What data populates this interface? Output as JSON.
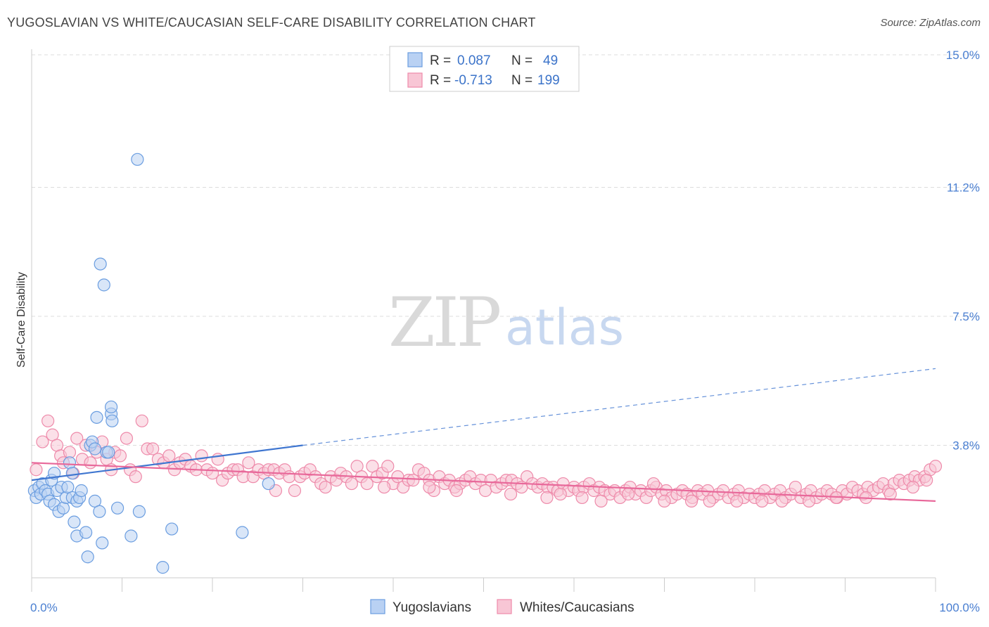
{
  "title": "YUGOSLAVIAN VS WHITE/CAUCASIAN SELF-CARE DISABILITY CORRELATION CHART",
  "source": "Source: ZipAtlas.com",
  "watermark": {
    "zip": "ZIP",
    "atlas": "atlas"
  },
  "legend": {
    "rows": [
      {
        "r_label": "R =",
        "r_value": "0.087",
        "n_label": "N =",
        "n_value": "49",
        "color": "#9ec0ee"
      },
      {
        "r_label": "R =",
        "r_value": "-0.713",
        "n_label": "N =",
        "n_value": "199",
        "color": "#f6b7cb"
      }
    ]
  },
  "bottom_legend": [
    "Yugoslavians",
    "Whites/Caucasians"
  ],
  "chart_data": {
    "type": "scatter",
    "ylabel": "Self-Care Disability",
    "xlim": [
      0,
      100
    ],
    "ylim": [
      0,
      15
    ],
    "x_tick_labels": [
      "0.0%",
      "100.0%"
    ],
    "y_ticks": [
      3.8,
      7.5,
      11.2,
      15.0
    ],
    "y_tick_labels": [
      "3.8%",
      "7.5%",
      "11.2%",
      "15.0%"
    ],
    "grid": true,
    "series": [
      {
        "name": "Yugoslavians",
        "color": "#6a9de0",
        "fill": "#b9d1f3",
        "points": [
          [
            0.3,
            2.5
          ],
          [
            0.5,
            2.3
          ],
          [
            0.8,
            2.6
          ],
          [
            1.0,
            2.4
          ],
          [
            1.2,
            2.7
          ],
          [
            1.5,
            2.5
          ],
          [
            1.8,
            2.4
          ],
          [
            2.0,
            2.2
          ],
          [
            2.2,
            2.8
          ],
          [
            2.5,
            3.0
          ],
          [
            2.5,
            2.1
          ],
          [
            2.8,
            2.5
          ],
          [
            3.0,
            1.9
          ],
          [
            3.3,
            2.6
          ],
          [
            3.5,
            2.0
          ],
          [
            3.8,
            2.3
          ],
          [
            4.0,
            2.6
          ],
          [
            4.2,
            3.3
          ],
          [
            4.5,
            3.0
          ],
          [
            4.5,
            2.3
          ],
          [
            4.7,
            1.6
          ],
          [
            5.0,
            2.2
          ],
          [
            5.0,
            1.2
          ],
          [
            5.3,
            2.3
          ],
          [
            5.5,
            2.5
          ],
          [
            6.0,
            1.3
          ],
          [
            6.2,
            0.6
          ],
          [
            6.5,
            3.8
          ],
          [
            6.7,
            3.9
          ],
          [
            7.0,
            2.2
          ],
          [
            7.0,
            3.7
          ],
          [
            7.2,
            4.6
          ],
          [
            7.5,
            1.9
          ],
          [
            7.6,
            9.0
          ],
          [
            7.8,
            1.0
          ],
          [
            8.0,
            8.4
          ],
          [
            8.3,
            3.6
          ],
          [
            8.5,
            3.6
          ],
          [
            8.8,
            4.7
          ],
          [
            8.8,
            4.9
          ],
          [
            8.9,
            4.5
          ],
          [
            9.5,
            2.0
          ],
          [
            11.0,
            1.2
          ],
          [
            11.7,
            12.0
          ],
          [
            11.9,
            1.9
          ],
          [
            14.5,
            0.3
          ],
          [
            15.5,
            1.4
          ],
          [
            23.3,
            1.3
          ],
          [
            26.2,
            2.7
          ]
        ]
      },
      {
        "name": "Whites/Caucasians",
        "color": "#ee8aaa",
        "fill": "#f8c6d5",
        "points": [
          [
            0.5,
            3.1
          ],
          [
            1.2,
            3.9
          ],
          [
            1.8,
            4.5
          ],
          [
            2.3,
            4.1
          ],
          [
            2.8,
            3.8
          ],
          [
            3.2,
            3.5
          ],
          [
            3.5,
            3.3
          ],
          [
            4.2,
            3.6
          ],
          [
            4.6,
            3.0
          ],
          [
            5.0,
            4.0
          ],
          [
            5.6,
            3.4
          ],
          [
            6.0,
            3.8
          ],
          [
            6.5,
            3.3
          ],
          [
            7.2,
            3.6
          ],
          [
            7.8,
            3.9
          ],
          [
            8.3,
            3.4
          ],
          [
            8.8,
            3.1
          ],
          [
            9.2,
            3.6
          ],
          [
            9.8,
            3.5
          ],
          [
            10.5,
            4.0
          ],
          [
            10.9,
            3.1
          ],
          [
            11.5,
            2.9
          ],
          [
            12.2,
            4.5
          ],
          [
            12.8,
            3.7
          ],
          [
            13.4,
            3.7
          ],
          [
            14.0,
            3.4
          ],
          [
            14.6,
            3.3
          ],
          [
            15.2,
            3.5
          ],
          [
            15.8,
            3.1
          ],
          [
            16.4,
            3.3
          ],
          [
            17.0,
            3.4
          ],
          [
            17.6,
            3.2
          ],
          [
            18.2,
            3.1
          ],
          [
            18.8,
            3.5
          ],
          [
            19.4,
            3.1
          ],
          [
            20.0,
            3.0
          ],
          [
            20.6,
            3.4
          ],
          [
            21.1,
            2.8
          ],
          [
            21.7,
            3.0
          ],
          [
            22.3,
            3.1
          ],
          [
            22.8,
            3.1
          ],
          [
            23.4,
            2.9
          ],
          [
            24.0,
            3.3
          ],
          [
            24.5,
            2.9
          ],
          [
            25.1,
            3.1
          ],
          [
            25.7,
            3.0
          ],
          [
            26.2,
            3.1
          ],
          [
            26.8,
            3.1
          ],
          [
            27.4,
            3.0
          ],
          [
            28.0,
            3.1
          ],
          [
            28.5,
            2.9
          ],
          [
            29.1,
            2.5
          ],
          [
            29.7,
            2.9
          ],
          [
            30.2,
            3.0
          ],
          [
            30.8,
            3.1
          ],
          [
            31.4,
            2.9
          ],
          [
            32.0,
            2.7
          ],
          [
            32.5,
            2.6
          ],
          [
            33.1,
            2.9
          ],
          [
            33.7,
            2.8
          ],
          [
            34.2,
            3.0
          ],
          [
            34.8,
            2.9
          ],
          [
            35.4,
            2.7
          ],
          [
            36.0,
            3.2
          ],
          [
            36.5,
            2.9
          ],
          [
            37.1,
            2.7
          ],
          [
            37.7,
            3.2
          ],
          [
            38.2,
            2.9
          ],
          [
            38.8,
            3.0
          ],
          [
            39.4,
            3.2
          ],
          [
            40.0,
            2.7
          ],
          [
            40.5,
            2.9
          ],
          [
            41.1,
            2.6
          ],
          [
            41.7,
            2.8
          ],
          [
            42.2,
            2.8
          ],
          [
            42.8,
            3.1
          ],
          [
            43.4,
            3.0
          ],
          [
            44.0,
            2.8
          ],
          [
            44.5,
            2.5
          ],
          [
            45.1,
            2.9
          ],
          [
            45.7,
            2.7
          ],
          [
            46.2,
            2.8
          ],
          [
            46.8,
            2.6
          ],
          [
            47.4,
            2.7
          ],
          [
            48.0,
            2.8
          ],
          [
            48.5,
            2.9
          ],
          [
            49.1,
            2.7
          ],
          [
            49.7,
            2.8
          ],
          [
            50.2,
            2.5
          ],
          [
            50.8,
            2.8
          ],
          [
            51.4,
            2.6
          ],
          [
            52.0,
            2.7
          ],
          [
            52.5,
            2.8
          ],
          [
            53.1,
            2.8
          ],
          [
            53.7,
            2.7
          ],
          [
            54.2,
            2.6
          ],
          [
            54.8,
            2.9
          ],
          [
            55.4,
            2.7
          ],
          [
            56.0,
            2.6
          ],
          [
            56.5,
            2.7
          ],
          [
            57.1,
            2.6
          ],
          [
            57.7,
            2.6
          ],
          [
            58.2,
            2.5
          ],
          [
            58.8,
            2.7
          ],
          [
            59.4,
            2.5
          ],
          [
            60.0,
            2.6
          ],
          [
            60.5,
            2.5
          ],
          [
            61.1,
            2.6
          ],
          [
            61.7,
            2.7
          ],
          [
            62.2,
            2.5
          ],
          [
            62.8,
            2.6
          ],
          [
            63.4,
            2.5
          ],
          [
            64.0,
            2.4
          ],
          [
            64.5,
            2.5
          ],
          [
            65.1,
            2.3
          ],
          [
            65.7,
            2.5
          ],
          [
            66.2,
            2.6
          ],
          [
            66.8,
            2.4
          ],
          [
            67.4,
            2.5
          ],
          [
            68.0,
            2.3
          ],
          [
            68.5,
            2.5
          ],
          [
            69.1,
            2.6
          ],
          [
            69.7,
            2.4
          ],
          [
            70.2,
            2.5
          ],
          [
            70.8,
            2.3
          ],
          [
            71.4,
            2.4
          ],
          [
            72.0,
            2.5
          ],
          [
            72.5,
            2.4
          ],
          [
            73.1,
            2.3
          ],
          [
            73.7,
            2.5
          ],
          [
            74.2,
            2.4
          ],
          [
            74.8,
            2.5
          ],
          [
            75.4,
            2.3
          ],
          [
            76.0,
            2.4
          ],
          [
            76.5,
            2.5
          ],
          [
            77.1,
            2.3
          ],
          [
            77.7,
            2.4
          ],
          [
            78.2,
            2.5
          ],
          [
            78.8,
            2.3
          ],
          [
            79.4,
            2.4
          ],
          [
            80.0,
            2.3
          ],
          [
            80.5,
            2.4
          ],
          [
            81.1,
            2.5
          ],
          [
            81.7,
            2.3
          ],
          [
            82.2,
            2.4
          ],
          [
            82.8,
            2.5
          ],
          [
            83.4,
            2.3
          ],
          [
            84.0,
            2.4
          ],
          [
            84.5,
            2.6
          ],
          [
            85.1,
            2.3
          ],
          [
            85.7,
            2.4
          ],
          [
            86.2,
            2.5
          ],
          [
            86.8,
            2.3
          ],
          [
            87.4,
            2.4
          ],
          [
            88.0,
            2.5
          ],
          [
            88.5,
            2.4
          ],
          [
            89.1,
            2.3
          ],
          [
            89.7,
            2.5
          ],
          [
            90.2,
            2.4
          ],
          [
            90.8,
            2.6
          ],
          [
            91.4,
            2.5
          ],
          [
            92.0,
            2.4
          ],
          [
            92.5,
            2.6
          ],
          [
            93.1,
            2.5
          ],
          [
            93.7,
            2.6
          ],
          [
            94.2,
            2.7
          ],
          [
            94.8,
            2.5
          ],
          [
            95.4,
            2.7
          ],
          [
            96.0,
            2.8
          ],
          [
            96.5,
            2.7
          ],
          [
            97.1,
            2.8
          ],
          [
            97.7,
            2.9
          ],
          [
            98.2,
            2.8
          ],
          [
            98.8,
            2.9
          ],
          [
            99.4,
            3.1
          ],
          [
            100.0,
            3.2
          ],
          [
            39.0,
            2.6
          ],
          [
            27.0,
            2.5
          ],
          [
            57.0,
            2.3
          ],
          [
            63.0,
            2.2
          ],
          [
            70.0,
            2.2
          ],
          [
            75.0,
            2.2
          ],
          [
            80.8,
            2.2
          ],
          [
            83.0,
            2.2
          ],
          [
            60.9,
            2.3
          ],
          [
            53.0,
            2.4
          ],
          [
            47.0,
            2.5
          ],
          [
            44.0,
            2.6
          ],
          [
            66.0,
            2.4
          ],
          [
            73.0,
            2.2
          ],
          [
            78.0,
            2.2
          ],
          [
            86.0,
            2.2
          ],
          [
            89.0,
            2.3
          ],
          [
            92.3,
            2.3
          ],
          [
            95.0,
            2.4
          ],
          [
            97.5,
            2.6
          ],
          [
            99.0,
            2.8
          ],
          [
            68.8,
            2.7
          ],
          [
            58.5,
            2.4
          ]
        ]
      }
    ],
    "trend_lines": [
      {
        "series": "Yugoslavians",
        "color": "#3f76d0",
        "solid": [
          [
            0,
            2.8
          ],
          [
            30,
            3.8
          ]
        ],
        "dashed": [
          [
            30,
            3.8
          ],
          [
            100,
            6.0
          ]
        ]
      },
      {
        "series": "Whites/Caucasians",
        "color": "#e8689a",
        "solid": [
          [
            0,
            3.3
          ],
          [
            100,
            2.2
          ]
        ]
      }
    ]
  }
}
